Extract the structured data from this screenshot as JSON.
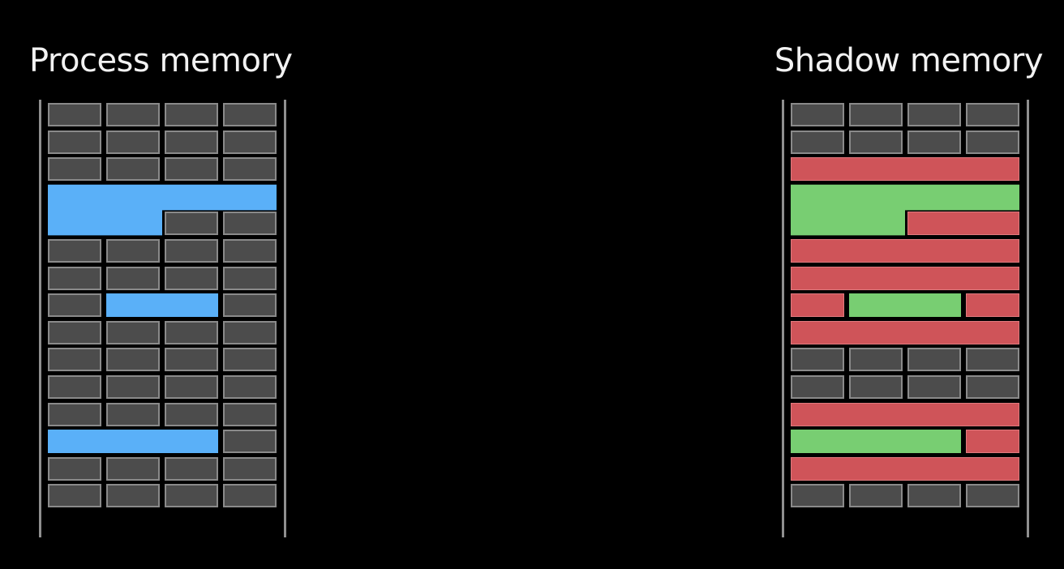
{
  "left_panel": {
    "title": "Process memory",
    "accent_color": "#5ab0f8"
  },
  "right_panel": {
    "title": "Shadow memory",
    "poison_color": "#cf5459",
    "valid_color": "#78ce72"
  },
  "cell_color": "#4c4c4c",
  "process_rows": [
    [
      "cell",
      "cell",
      "cell",
      "cell"
    ],
    [
      "cell",
      "cell",
      "cell",
      "cell"
    ],
    [
      "cell",
      "cell",
      "cell",
      "cell"
    ],
    [
      "alloc",
      "alloc",
      "alloc",
      "alloc"
    ],
    [
      "alloc",
      "alloc",
      "cell",
      "cell"
    ],
    [
      "cell",
      "cell",
      "cell",
      "cell"
    ],
    [
      "cell",
      "cell",
      "cell",
      "cell"
    ],
    [
      "cell",
      "alloc",
      "alloc",
      "cell"
    ],
    [
      "cell",
      "cell",
      "cell",
      "cell"
    ],
    [
      "cell",
      "cell",
      "cell",
      "cell"
    ],
    [
      "cell",
      "cell",
      "cell",
      "cell"
    ],
    [
      "cell",
      "cell",
      "cell",
      "cell"
    ],
    [
      "alloc",
      "alloc",
      "alloc",
      "cell"
    ],
    [
      "cell",
      "cell",
      "cell",
      "cell"
    ],
    [
      "cell",
      "cell",
      "cell",
      "cell"
    ]
  ],
  "shadow_rows": [
    [
      "cell",
      "cell",
      "cell",
      "cell"
    ],
    [
      "cell",
      "cell",
      "cell",
      "cell"
    ],
    [
      "red",
      "red",
      "red",
      "red"
    ],
    [
      "green",
      "green",
      "green",
      "green"
    ],
    [
      "green",
      "green",
      "red",
      "red"
    ],
    [
      "red",
      "red",
      "red",
      "red"
    ],
    [
      "red",
      "red",
      "red",
      "red"
    ],
    [
      "red",
      "green",
      "green",
      "red"
    ],
    [
      "red",
      "red",
      "red",
      "red"
    ],
    [
      "cell",
      "cell",
      "cell",
      "cell"
    ],
    [
      "cell",
      "cell",
      "cell",
      "cell"
    ],
    [
      "red",
      "red",
      "red",
      "red"
    ],
    [
      "green",
      "green",
      "green",
      "red"
    ],
    [
      "red",
      "red",
      "red",
      "red"
    ],
    [
      "cell",
      "cell",
      "cell",
      "cell"
    ]
  ]
}
